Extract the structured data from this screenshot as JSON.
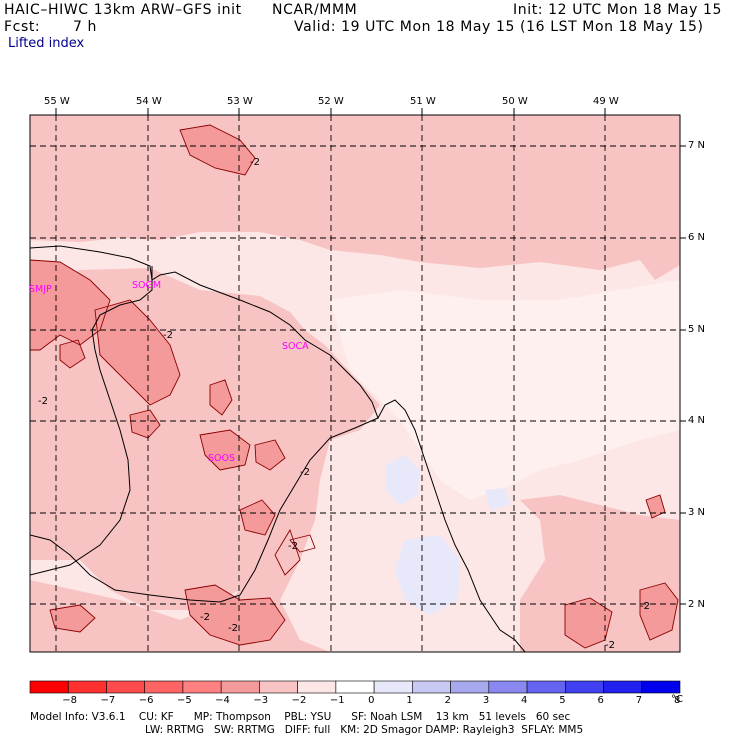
{
  "header": {
    "line1_left": "HAIC–HIWC 13km ARW–GFS init",
    "line1_mid": "NCAR/MMM",
    "line1_right": "Init: 12 UTC Mon 18 May 15",
    "line2_left": "Fcst:",
    "line2_fcst": "7 h",
    "line2_right": "Valid: 19 UTC Mon 18 May 15 (16 LST Mon 18 May 15)",
    "field_title": "Lifted index"
  },
  "map": {
    "lon_labels": [
      "55 W",
      "54 W",
      "53 W",
      "52 W",
      "51 W",
      "50 W",
      "49 W"
    ],
    "lat_labels": [
      "7 N",
      "6 N",
      "5 N",
      "4 N",
      "3 N",
      "2 N"
    ],
    "stations": [
      "SMJP",
      "SOGM",
      "SOCA",
      "SOOS"
    ],
    "contour_labels": [
      "-2",
      "-2",
      "-2",
      "-2",
      "-2",
      "-2",
      "-2",
      "-2",
      "-2"
    ],
    "colors": {
      "li_neg3": "#f59a9a",
      "li_neg2": "#f8c3c3",
      "li_neg1": "#fde6e6",
      "li_0": "#ffffff",
      "li_pos1": "#e8e8fb",
      "station": "#ff00ff"
    }
  },
  "colorbar": {
    "ticks": [
      "−8",
      "−7",
      "−6",
      "−5",
      "−4",
      "−3",
      "−2",
      "−1",
      "0",
      "1",
      "2",
      "3",
      "4",
      "5",
      "6",
      "7",
      "8"
    ],
    "unit": "°C",
    "colors": [
      "#ff0000",
      "#ff3030",
      "#ff4b4b",
      "#ff6464",
      "#ff8080",
      "#f59a9a",
      "#f8c3c3",
      "#fde6e6",
      "#ffffff",
      "#e8e8fb",
      "#c8c8f5",
      "#a8a8ee",
      "#8888f0",
      "#6464f0",
      "#4040f0",
      "#2020f0",
      "#0000ee"
    ]
  },
  "footer": {
    "line1": "Model Info: V3.6.1    CU: KF      MP: Thompson    PBL: YSU      SF: Noah LSM    13 km   51 levels   60 sec",
    "line2": "LW: RRTMG   SW: RRTMG   DIFF: full   KM: 2D Smagor DAMP: Rayleigh3  SFLAY: MM5"
  }
}
